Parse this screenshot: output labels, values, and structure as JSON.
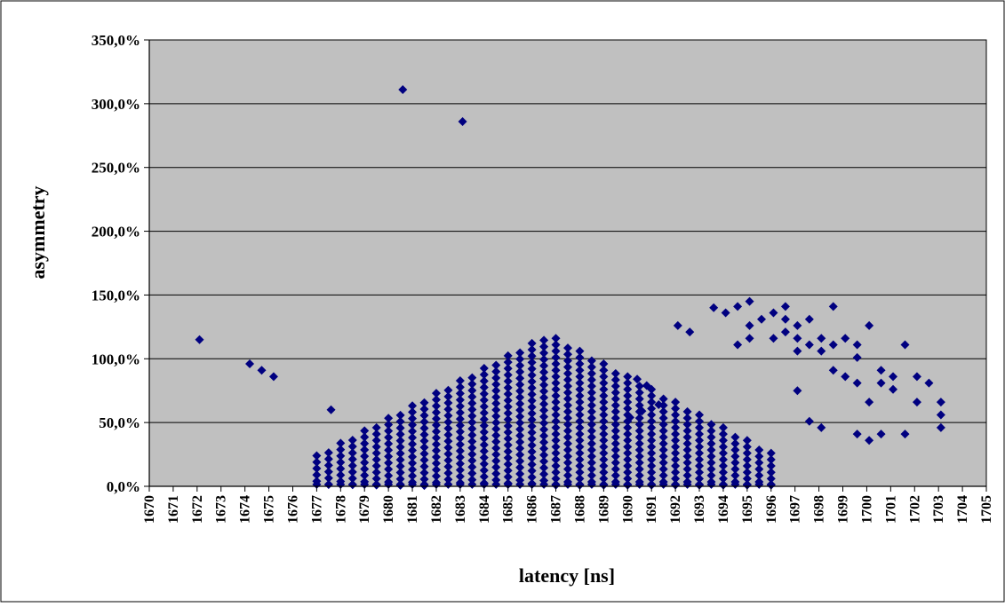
{
  "colors": {
    "plot_background": "#c0c0c0",
    "marker": "#000080",
    "gridline": "#000000",
    "frame": "#000000"
  },
  "chart_data": {
    "type": "scatter",
    "xlabel": "latency [ns]",
    "ylabel": "asymmetry",
    "xlim": [
      1670,
      1705
    ],
    "ylim": [
      0,
      350
    ],
    "x_ticks": [
      1670,
      1671,
      1672,
      1673,
      1674,
      1675,
      1676,
      1677,
      1678,
      1679,
      1680,
      1681,
      1682,
      1683,
      1684,
      1685,
      1686,
      1687,
      1688,
      1689,
      1690,
      1691,
      1692,
      1693,
      1694,
      1695,
      1696,
      1697,
      1698,
      1699,
      1700,
      1701,
      1702,
      1703,
      1704,
      1705
    ],
    "y_ticks": [
      0,
      50,
      100,
      150,
      200,
      250,
      300,
      350
    ],
    "y_tick_labels": [
      "0,0%",
      "50,0%",
      "100,0%",
      "150,0%",
      "200,0%",
      "250,0%",
      "300,0%",
      "350,0%"
    ],
    "grid": "horizontal",
    "legend": "none",
    "marker": "diamond",
    "triangle_region": {
      "x_range": [
        1677,
        1696.2
      ],
      "peak": [
        1686.7,
        119
      ],
      "base_left": [
        1677,
        24
      ],
      "base_right": [
        1696.2,
        24
      ],
      "y_min": 0
    },
    "outliers": [
      [
        1672.1,
        115
      ],
      [
        1674.2,
        96
      ],
      [
        1674.7,
        91
      ],
      [
        1675.2,
        86
      ],
      [
        1677.6,
        60
      ],
      [
        1680.6,
        311
      ],
      [
        1683.1,
        286
      ],
      [
        1690.4,
        84
      ],
      [
        1690.8,
        79
      ],
      [
        1691.3,
        64
      ],
      [
        1690.1,
        54
      ],
      [
        1690.6,
        59
      ],
      [
        1692.1,
        126
      ],
      [
        1692.6,
        121
      ],
      [
        1693.6,
        140
      ],
      [
        1694.1,
        136
      ],
      [
        1694.6,
        141
      ],
      [
        1694.6,
        111
      ],
      [
        1695.1,
        145
      ],
      [
        1695.1,
        116
      ],
      [
        1695.1,
        126
      ],
      [
        1695.6,
        131
      ],
      [
        1696.1,
        136
      ],
      [
        1696.1,
        116
      ],
      [
        1696.6,
        141
      ],
      [
        1696.6,
        131
      ],
      [
        1696.6,
        121
      ],
      [
        1697.1,
        126
      ],
      [
        1697.1,
        106
      ],
      [
        1697.1,
        116
      ],
      [
        1697.1,
        75
      ],
      [
        1697.6,
        131
      ],
      [
        1697.6,
        111
      ],
      [
        1697.6,
        51
      ],
      [
        1698.1,
        116
      ],
      [
        1698.1,
        106
      ],
      [
        1698.1,
        46
      ],
      [
        1698.6,
        141
      ],
      [
        1698.6,
        111
      ],
      [
        1698.6,
        91
      ],
      [
        1699.1,
        116
      ],
      [
        1699.1,
        86
      ],
      [
        1699.6,
        111
      ],
      [
        1699.6,
        101
      ],
      [
        1699.6,
        81
      ],
      [
        1699.6,
        41
      ],
      [
        1700.1,
        126
      ],
      [
        1700.1,
        66
      ],
      [
        1700.1,
        36
      ],
      [
        1700.6,
        91
      ],
      [
        1700.6,
        81
      ],
      [
        1700.6,
        41
      ],
      [
        1701.1,
        86
      ],
      [
        1701.1,
        76
      ],
      [
        1701.6,
        111
      ],
      [
        1701.6,
        41
      ],
      [
        1702.1,
        86
      ],
      [
        1702.1,
        66
      ],
      [
        1702.6,
        81
      ],
      [
        1703.1,
        66
      ],
      [
        1703.1,
        56
      ],
      [
        1703.1,
        46
      ]
    ]
  }
}
